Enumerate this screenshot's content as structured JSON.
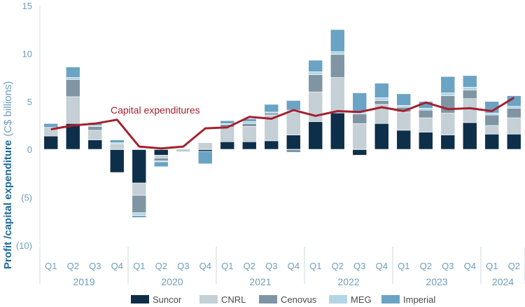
{
  "chart_data": {
    "type": "bar",
    "stacked": true,
    "ylabel": "Profit /capital expenditure",
    "ylabel_unit": "(C$ billions)",
    "ylim": [
      -10,
      15
    ],
    "yticks": [
      -10,
      -5,
      0,
      5,
      10,
      15
    ],
    "ytick_labels": [
      "(10)",
      "(5)",
      "0",
      "5",
      "10",
      "15"
    ],
    "grid": false,
    "legend_position": "bottom",
    "categories": [
      "Q1",
      "Q2",
      "Q3",
      "Q4",
      "Q1",
      "Q2",
      "Q3",
      "Q4",
      "Q1",
      "Q2",
      "Q3",
      "Q4",
      "Q1",
      "Q2",
      "Q3",
      "Q4",
      "Q1",
      "Q2",
      "Q3",
      "Q4",
      "Q1",
      "Q2"
    ],
    "years": [
      {
        "label": "2019",
        "start": 0,
        "count": 4
      },
      {
        "label": "2020",
        "start": 4,
        "count": 4
      },
      {
        "label": "2021",
        "start": 8,
        "count": 4
      },
      {
        "label": "2022",
        "start": 12,
        "count": 4
      },
      {
        "label": "2023",
        "start": 16,
        "count": 4
      },
      {
        "label": "2024",
        "start": 20,
        "count": 2
      }
    ],
    "series": [
      {
        "name": "Suncor",
        "color": "#0e2f4a",
        "values": [
          1.4,
          2.7,
          1.0,
          -2.4,
          -3.5,
          -0.6,
          -0.1,
          -0.2,
          0.8,
          0.8,
          0.9,
          1.5,
          2.9,
          3.8,
          -0.6,
          2.7,
          2.0,
          1.8,
          1.5,
          2.8,
          1.6,
          1.6
        ]
      },
      {
        "name": "CNRL",
        "color": "#c4cfd6",
        "values": [
          0.9,
          2.8,
          1.0,
          0.6,
          -1.3,
          -0.3,
          0.0,
          0.7,
          1.5,
          1.6,
          2.7,
          2.4,
          3.1,
          3.7,
          2.7,
          2.0,
          1.9,
          1.5,
          2.3,
          2.5,
          0.9,
          1.7
        ]
      },
      {
        "name": "Cenovus",
        "color": "#7f95a3",
        "values": [
          0.0,
          1.8,
          0.4,
          0.0,
          -1.8,
          -0.3,
          -0.1,
          0.0,
          0.3,
          0.3,
          0.2,
          -0.3,
          1.8,
          2.4,
          1.0,
          0.4,
          0.5,
          0.8,
          1.8,
          0.9,
          1.1,
          1.0
        ]
      },
      {
        "name": "MEG",
        "color": "#b3d5e6",
        "values": [
          0.0,
          0.2,
          0.1,
          0.1,
          -0.3,
          -0.1,
          0.0,
          0.0,
          0.1,
          0.2,
          0.1,
          0.2,
          0.3,
          0.3,
          0.2,
          0.3,
          0.2,
          0.2,
          0.3,
          0.3,
          0.2,
          0.2
        ]
      },
      {
        "name": "Imperial",
        "color": "#6aa3c4",
        "values": [
          0.4,
          1.1,
          0.3,
          0.3,
          -0.2,
          -0.5,
          0.0,
          -1.3,
          0.3,
          0.3,
          0.8,
          1.0,
          1.2,
          2.3,
          2.0,
          1.5,
          1.2,
          0.7,
          1.7,
          1.2,
          1.2,
          1.1
        ]
      }
    ],
    "line": {
      "name": "Capital expenditures",
      "annotation": "Capital expenditures",
      "color": "#a5202e",
      "values": [
        2.1,
        2.5,
        2.7,
        3.1,
        0.3,
        0.1,
        0.3,
        2.2,
        2.3,
        3.4,
        3.2,
        4.1,
        3.5,
        4.0,
        3.9,
        4.4,
        4.0,
        4.9,
        4.2,
        4.3,
        4.0,
        5.4
      ]
    }
  }
}
